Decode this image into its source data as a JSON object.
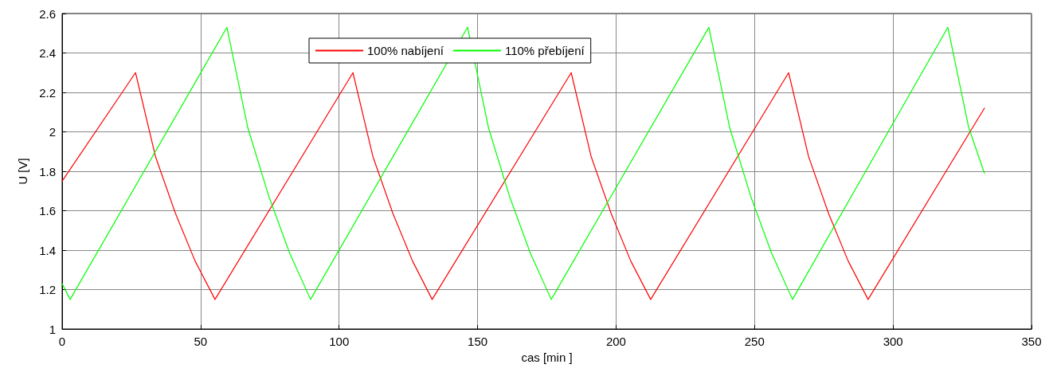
{
  "chart_data": {
    "type": "line",
    "xlabel": "cas [min ]",
    "ylabel": "U [V]",
    "xlim": [
      0,
      350
    ],
    "xticks": [
      0,
      50,
      100,
      150,
      200,
      250,
      300,
      350
    ],
    "ylim": [
      1,
      2.6
    ],
    "yticks": [
      1,
      1.2,
      1.4,
      1.6,
      1.8,
      2,
      2.2,
      2.4,
      2.6
    ],
    "grid": true,
    "legend": "top",
    "marker": "none",
    "line_style": "solid",
    "series": [
      {
        "name": "100% nabíjení",
        "color": "#ff0000",
        "x": [
          0,
          26.5,
          33.7,
          40.9,
          48.0,
          55.2,
          105,
          112.2,
          119.4,
          126.5,
          133.6,
          183.8,
          191,
          198.2,
          205.3,
          212.5,
          262.3,
          269.5,
          276.7,
          283.8,
          291,
          333
        ],
        "values": [
          1.75,
          2.3,
          1.875,
          1.587,
          1.345,
          1.15,
          2.3,
          1.875,
          1.587,
          1.345,
          1.15,
          2.3,
          1.875,
          1.587,
          1.345,
          1.15,
          2.3,
          1.875,
          1.587,
          1.345,
          1.15,
          2.12
        ]
      },
      {
        "name": "110% přebíjení",
        "color": "#00ff00",
        "x": [
          0,
          2.9,
          59.5,
          67.05,
          74.6,
          82.15,
          89.7,
          146.4,
          153.95,
          161.5,
          169.05,
          176.6,
          233.5,
          241.05,
          248.6,
          256.15,
          263.7,
          319.8,
          327.35,
          333
        ],
        "values": [
          1.23,
          1.15,
          2.53,
          2.02,
          1.674,
          1.385,
          1.15,
          2.53,
          2.02,
          1.674,
          1.385,
          1.15,
          2.53,
          2.02,
          1.674,
          1.385,
          1.15,
          2.53,
          2.02,
          1.79
        ]
      }
    ]
  }
}
